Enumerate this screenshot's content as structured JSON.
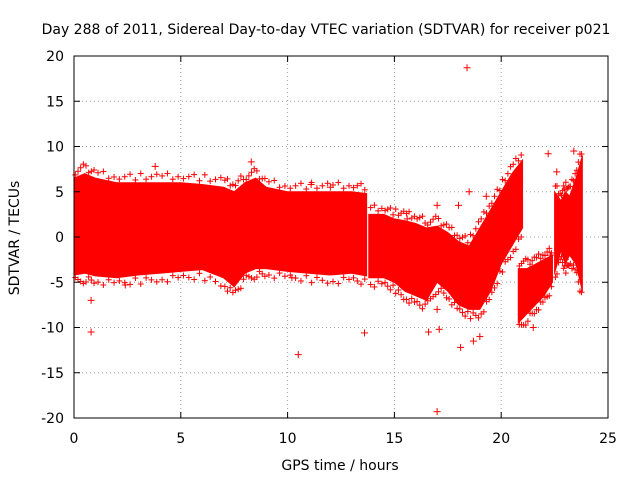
{
  "chart_data": {
    "type": "scatter",
    "title": "Day 288 of 2011, Sidereal Day-to-day VTEC variation (SDTVAR) for receiver p021",
    "xlabel": "GPS time / hours",
    "ylabel": "SDTVAR / TECUs",
    "xlim": [
      0,
      25
    ],
    "ylim": [
      -20,
      20
    ],
    "xticks": [
      0,
      5,
      10,
      15,
      20,
      25
    ],
    "yticks": [
      -20,
      -15,
      -10,
      -5,
      0,
      5,
      10,
      15,
      20
    ],
    "grid": true,
    "marker": "+",
    "color": "#ff0000",
    "bands": [
      {
        "x": [
          0.0,
          0.5,
          1.0,
          2.0,
          3.0,
          4.0,
          5.0,
          6.0,
          7.0,
          7.5,
          8.0,
          8.5,
          9.0,
          10.0,
          11.0,
          12.0,
          13.0,
          13.7
        ],
        "lo": [
          -4.2,
          -4.0,
          -4.3,
          -4.5,
          -4.2,
          -4.0,
          -3.8,
          -3.6,
          -4.5,
          -5.5,
          -4.0,
          -3.5,
          -3.5,
          -3.8,
          -4.0,
          -4.2,
          -4.0,
          -4.3
        ],
        "hi": [
          6.5,
          7.0,
          6.5,
          6.0,
          6.0,
          6.0,
          6.0,
          5.8,
          5.5,
          5.0,
          6.0,
          6.5,
          5.5,
          5.0,
          5.0,
          5.0,
          5.0,
          4.8
        ]
      },
      {
        "x": [
          13.8,
          14.5,
          15.0,
          15.5,
          16.0,
          16.5,
          17.0,
          17.5,
          18.0,
          18.5,
          19.0,
          19.5,
          20.0,
          20.5,
          21.0
        ],
        "lo": [
          -4.5,
          -4.5,
          -5.0,
          -6.0,
          -6.5,
          -7.0,
          -5.0,
          -6.0,
          -7.5,
          -8.0,
          -8.0,
          -6.0,
          -3.0,
          -1.0,
          1.0
        ],
        "hi": [
          2.5,
          2.5,
          2.0,
          1.8,
          1.5,
          1.0,
          1.2,
          0.5,
          -0.5,
          -1.0,
          1.0,
          3.0,
          5.0,
          7.0,
          8.5
        ]
      },
      {
        "x": [
          20.8,
          21.2,
          21.6,
          22.0,
          22.4
        ],
        "lo": [
          -9.5,
          -8.5,
          -7.5,
          -6.5,
          -5.0
        ],
        "hi": [
          -3.5,
          -3.5,
          -3.0,
          -2.5,
          -2.0
        ]
      },
      {
        "x": [
          22.5,
          22.8,
          23.0,
          23.2,
          23.5,
          23.8
        ],
        "lo": [
          -4.0,
          -1.5,
          -3.0,
          -2.0,
          -3.0,
          -6.0
        ],
        "hi": [
          5.0,
          4.0,
          5.0,
          4.5,
          6.5,
          9.0
        ]
      }
    ],
    "outliers": [
      {
        "x": 0.8,
        "y": -10.5
      },
      {
        "x": 0.8,
        "y": -7.0
      },
      {
        "x": 10.5,
        "y": -13.0
      },
      {
        "x": 13.6,
        "y": -10.6
      },
      {
        "x": 16.6,
        "y": -10.5
      },
      {
        "x": 17.1,
        "y": -10.2
      },
      {
        "x": 17.0,
        "y": -19.3
      },
      {
        "x": 18.4,
        "y": 18.7
      },
      {
        "x": 22.2,
        "y": 9.2
      },
      {
        "x": 22.6,
        "y": 7.2
      },
      {
        "x": 2.4,
        "y": -5.3
      },
      {
        "x": 3.8,
        "y": 7.8
      },
      {
        "x": 8.3,
        "y": 8.3
      },
      {
        "x": 17.0,
        "y": -8.0
      },
      {
        "x": 17.0,
        "y": 3.5
      },
      {
        "x": 18.0,
        "y": 3.5
      },
      {
        "x": 18.1,
        "y": -12.2
      },
      {
        "x": 18.5,
        "y": 5.0
      },
      {
        "x": 19.3,
        "y": 4.5
      },
      {
        "x": 10.2,
        "y": -4.5
      },
      {
        "x": 11.1,
        "y": 5.8
      },
      {
        "x": 12.0,
        "y": 5.5
      },
      {
        "x": 15.6,
        "y": 2.0
      },
      {
        "x": 18.7,
        "y": -11.5
      },
      {
        "x": 19.0,
        "y": -11.0
      },
      {
        "x": 21.3,
        "y": -5.5
      },
      {
        "x": 23.0,
        "y": -2.5
      },
      {
        "x": 23.4,
        "y": 9.5
      },
      {
        "x": 21.5,
        "y": -10.0
      },
      {
        "x": 22.3,
        "y": -2.0
      }
    ]
  }
}
